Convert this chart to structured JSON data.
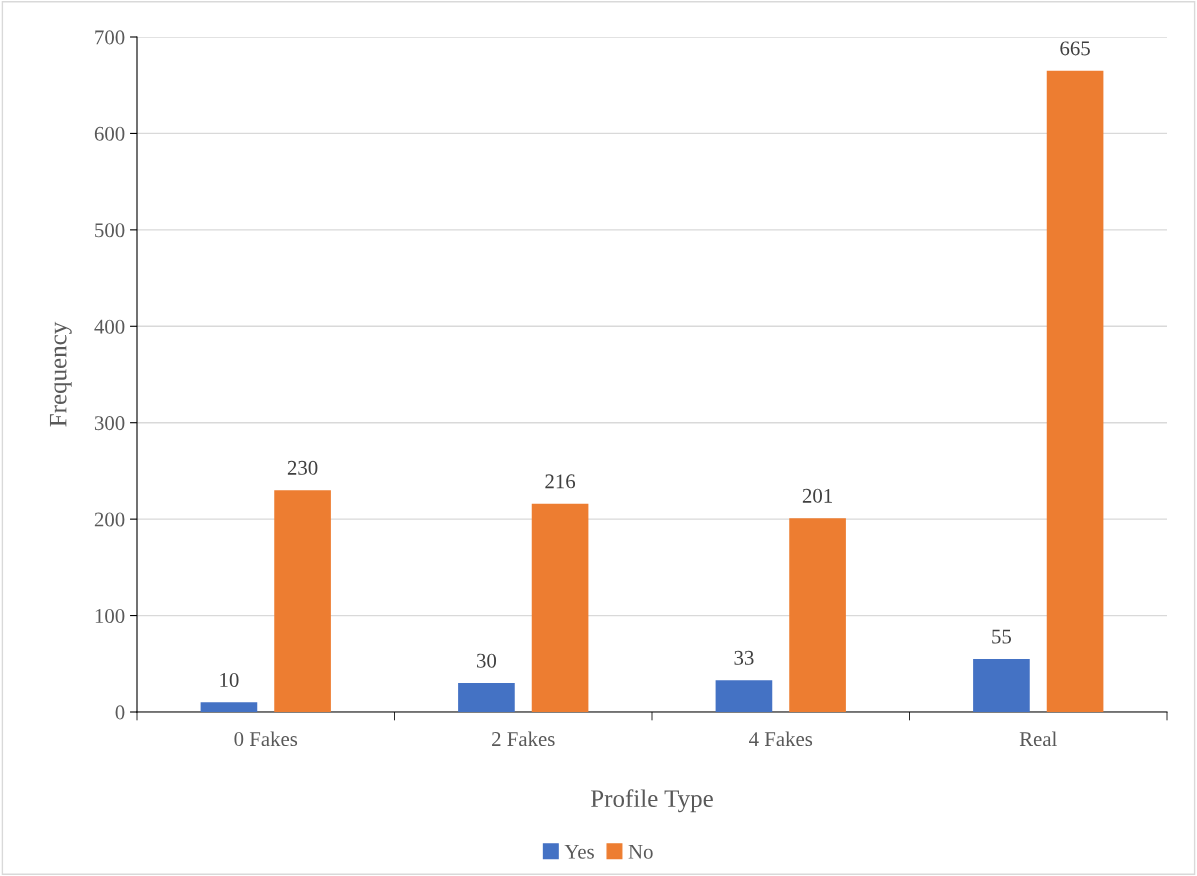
{
  "chart_data": {
    "type": "bar",
    "xlabel": "Profile Type",
    "ylabel": "Frequency",
    "categories": [
      "0 Fakes",
      "2 Fakes",
      "4 Fakes",
      "Real"
    ],
    "series": [
      {
        "name": "Yes",
        "color": "#4472c4",
        "values": [
          10,
          30,
          33,
          55
        ]
      },
      {
        "name": "No",
        "color": "#ed7d31",
        "values": [
          230,
          216,
          201,
          665
        ]
      }
    ],
    "ylim": [
      0,
      700
    ],
    "yticks": [
      0,
      100,
      200,
      300,
      400,
      500,
      600,
      700
    ],
    "grid": "y",
    "legend": "bottom",
    "data_labels": true
  }
}
